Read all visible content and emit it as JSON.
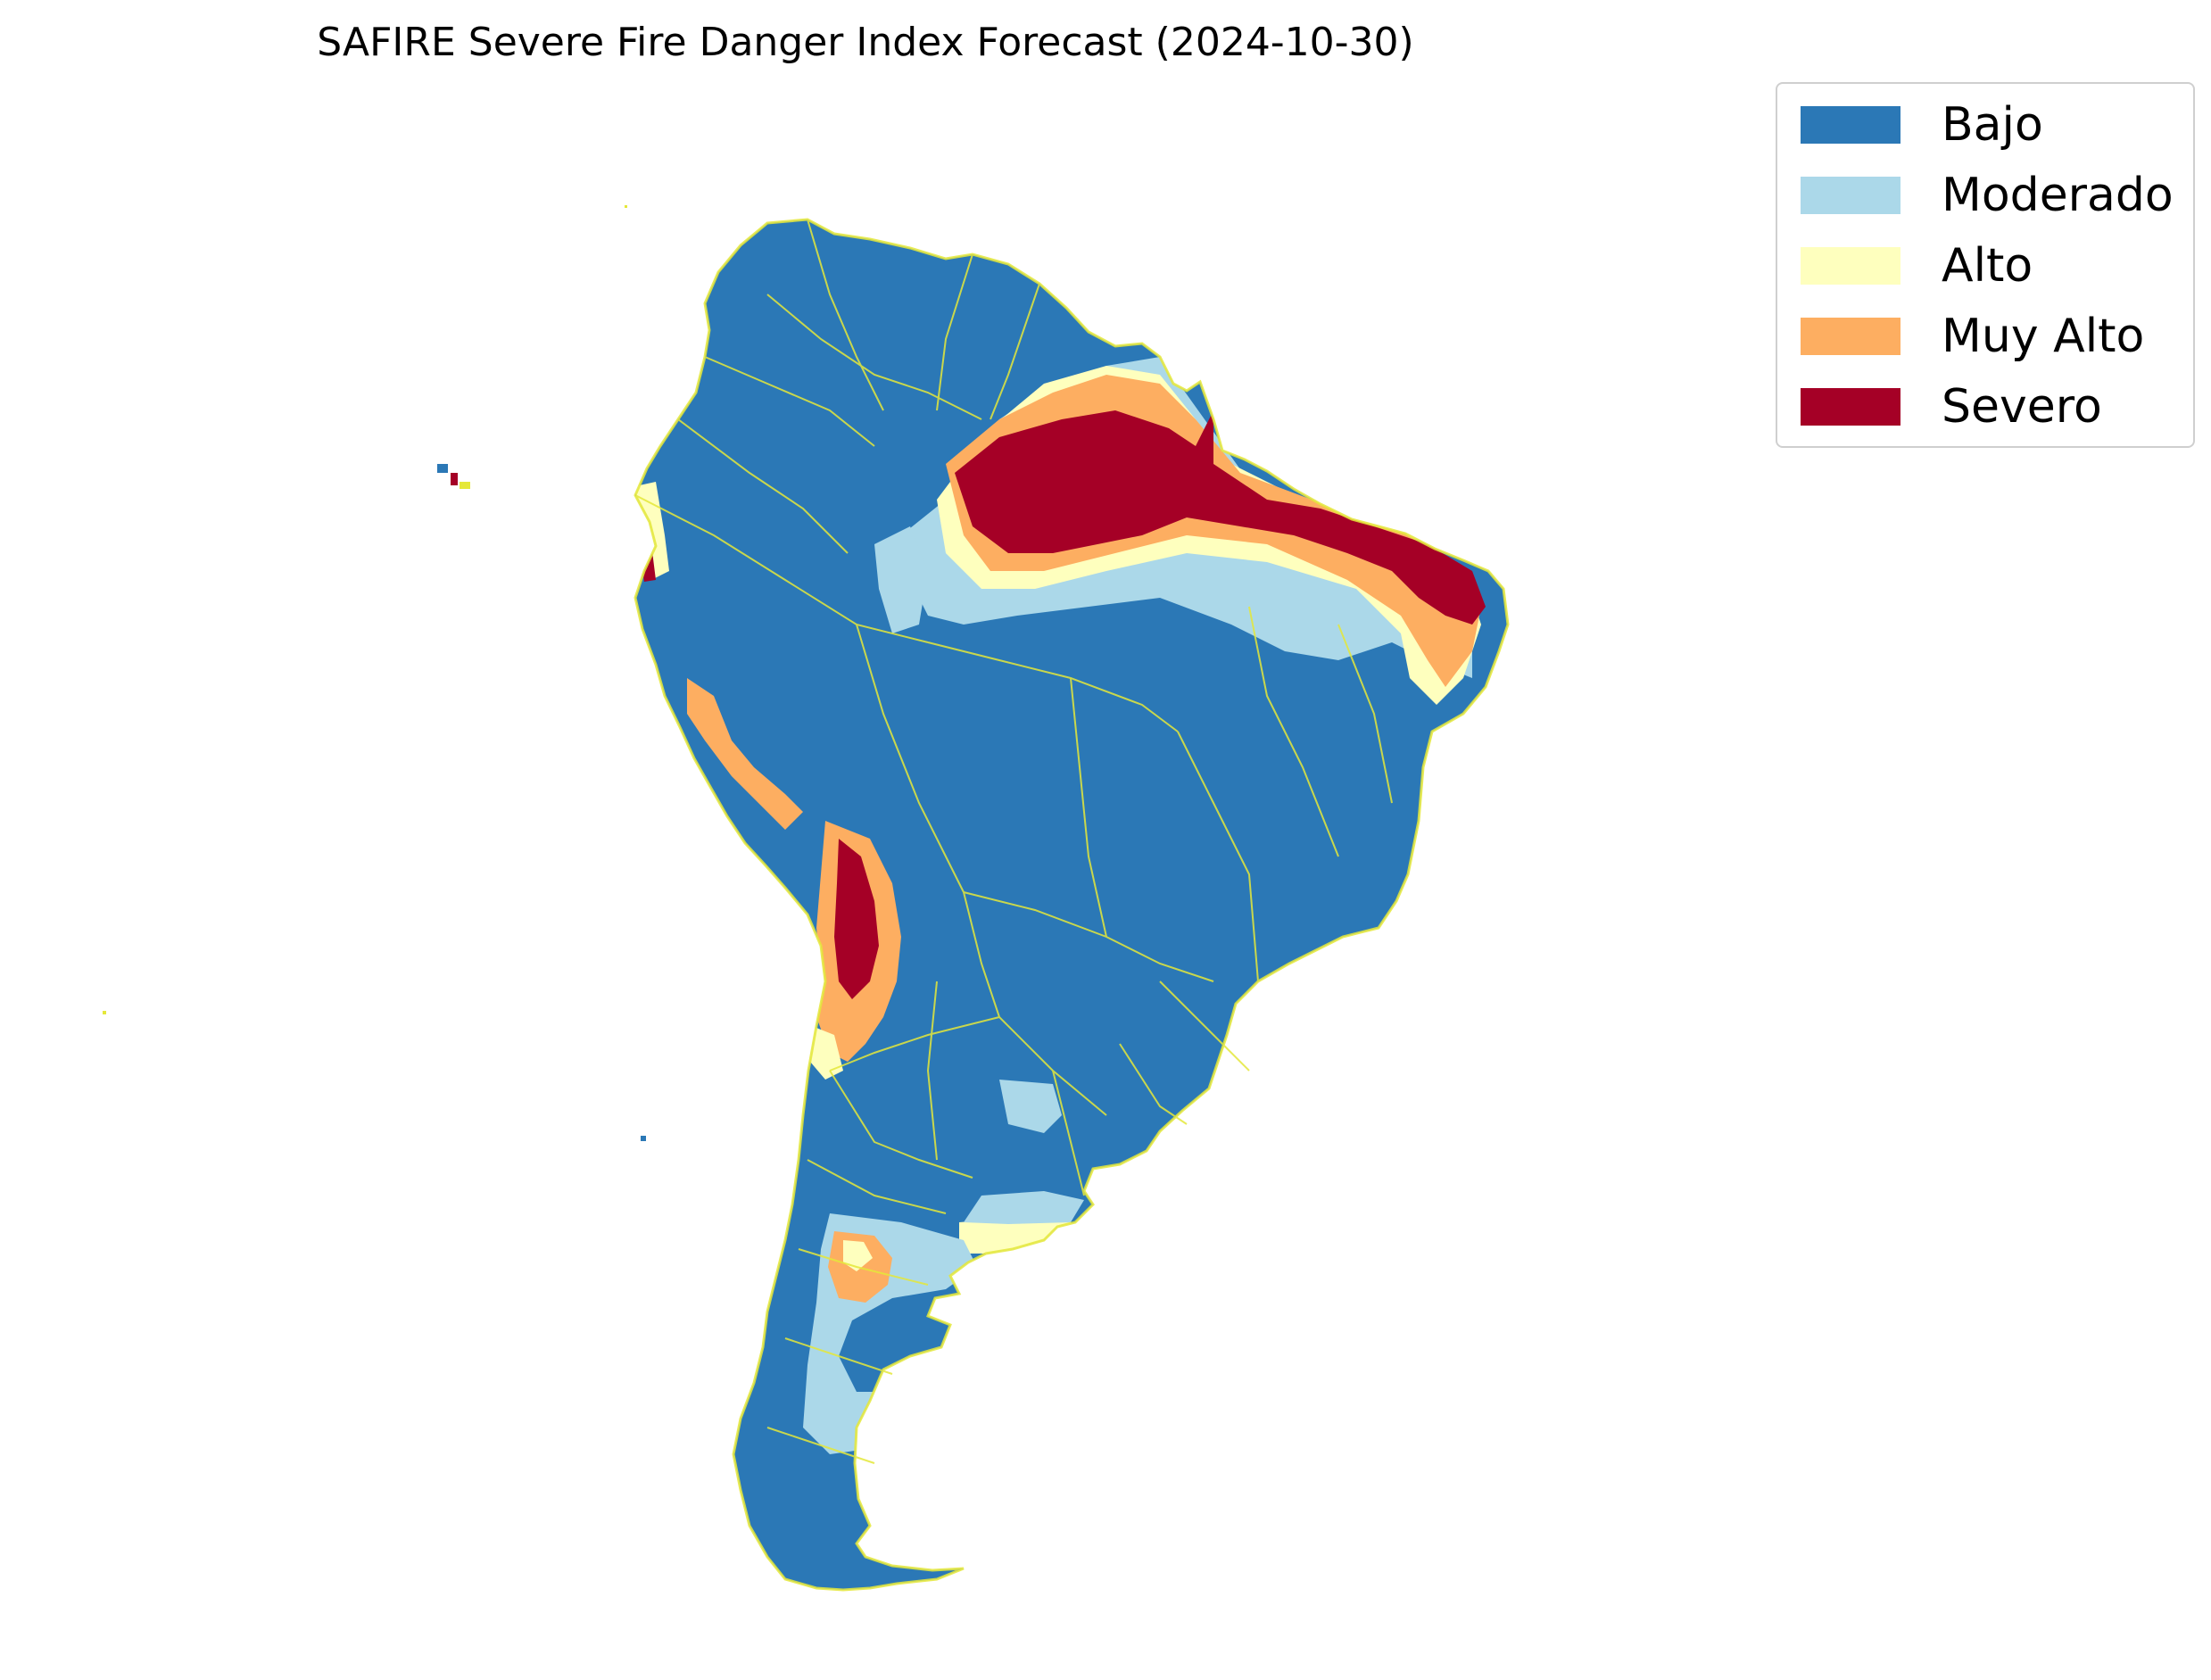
{
  "map": {
    "title": "SAFIRE Severe Fire Danger Index Forecast (2024-10-30)",
    "legend": {
      "placement": "top-right",
      "items": [
        {
          "label": "Bajo",
          "color": "#2b78b6"
        },
        {
          "label": "Moderado",
          "color": "#abd8e9"
        },
        {
          "label": "Alto",
          "color": "#feffbe"
        },
        {
          "label": "Muy Alto",
          "color": "#fdae61"
        },
        {
          "label": "Severo",
          "color": "#a50026"
        }
      ]
    },
    "boundary_color": "#e5e83a"
  }
}
